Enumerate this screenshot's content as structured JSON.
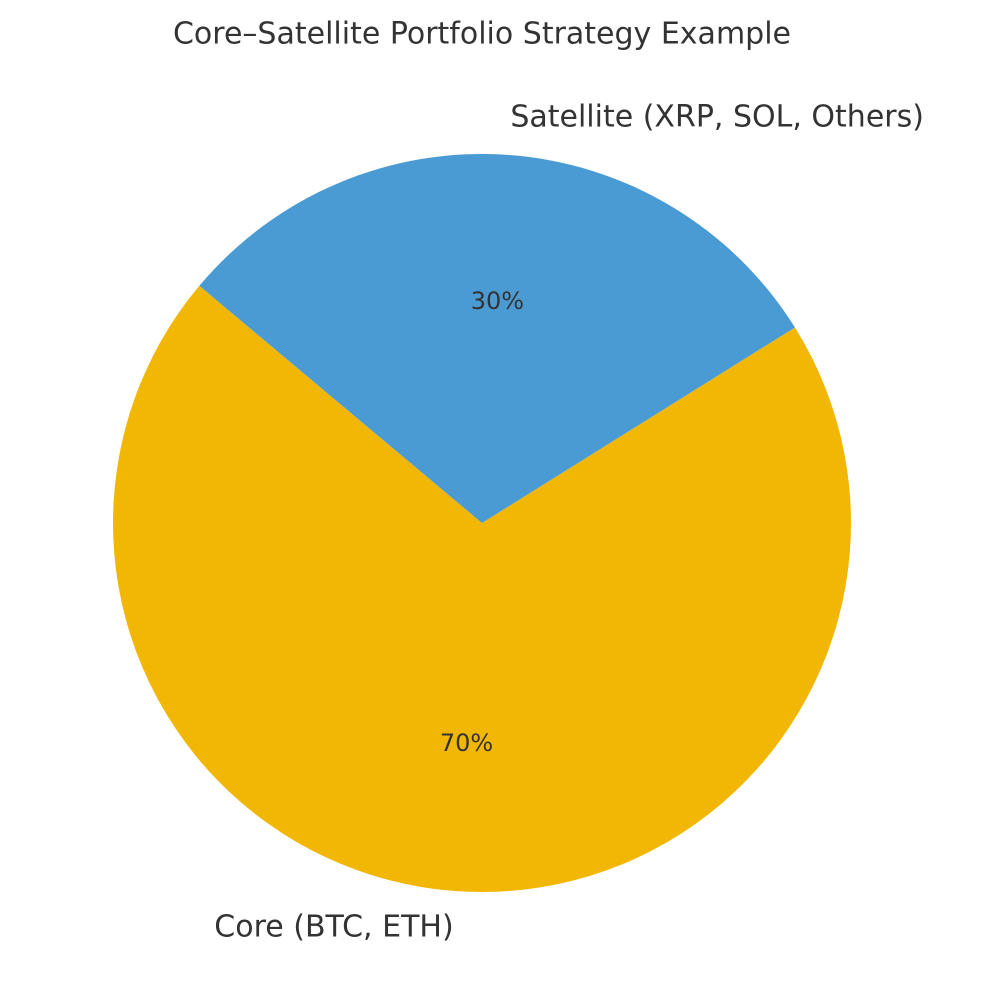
{
  "chart_data": {
    "type": "pie",
    "title": "Core–Satellite Portfolio Strategy Example",
    "categories": [
      "Core (BTC, ETH)",
      "Satellite (XRP, SOL, Others)"
    ],
    "values": [
      70,
      30
    ],
    "value_labels": [
      "70%",
      "30%"
    ],
    "colors": [
      "#f2b705",
      "#4a9bd4"
    ],
    "startangle": 140,
    "counterclock": true
  }
}
